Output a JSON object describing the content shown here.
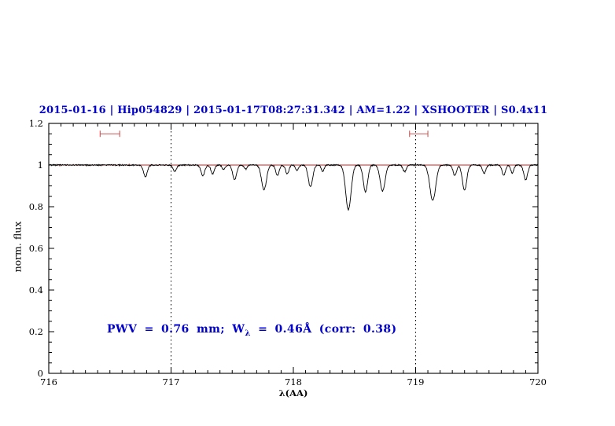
{
  "chart_data": {
    "type": "line",
    "title": "2015-01-16 | Hip054829 | 2015-01-17T08:27:31.342 | AM=1.22 | XSHOOTER | S0.4x11",
    "xlabel": "λ(AA)",
    "ylabel": "norm. flux",
    "xlim": [
      716,
      720
    ],
    "ylim": [
      0,
      1.2
    ],
    "xticks": [
      {
        "v": 716,
        "label": "716"
      },
      {
        "v": 717,
        "label": "717"
      },
      {
        "v": 718,
        "label": "718"
      },
      {
        "v": 719,
        "label": "719"
      },
      {
        "v": 720,
        "label": "720"
      }
    ],
    "yticks": [
      {
        "v": 0,
        "label": "0"
      },
      {
        "v": 0.2,
        "label": "0.2"
      },
      {
        "v": 0.4,
        "label": "0.4"
      },
      {
        "v": 0.6,
        "label": "0.6"
      },
      {
        "v": 0.8,
        "label": "0.8"
      },
      {
        "v": 1,
        "label": "1"
      },
      {
        "v": 1.2,
        "label": "1.2"
      }
    ],
    "x_minor_step": 0.1,
    "y_minor_step": 0.05,
    "grid": "off",
    "legend": "none",
    "vlines": [
      {
        "x": 717,
        "style": "dotted"
      },
      {
        "x": 719,
        "style": "dotted"
      }
    ],
    "continuum_level": 1.0,
    "series": [
      {
        "name": "observed spectrum",
        "color": "#000000"
      },
      {
        "name": "continuum fit",
        "color": "#cc2020"
      }
    ],
    "absorption_lines": [
      {
        "center": 716.79,
        "depth": 0.055,
        "sigma": 0.016
      },
      {
        "center": 717.03,
        "depth": 0.03,
        "sigma": 0.014
      },
      {
        "center": 717.26,
        "depth": 0.05,
        "sigma": 0.016
      },
      {
        "center": 717.34,
        "depth": 0.042,
        "sigma": 0.014
      },
      {
        "center": 717.43,
        "depth": 0.022,
        "sigma": 0.012
      },
      {
        "center": 717.52,
        "depth": 0.07,
        "sigma": 0.016
      },
      {
        "center": 717.61,
        "depth": 0.02,
        "sigma": 0.012
      },
      {
        "center": 717.76,
        "depth": 0.12,
        "sigma": 0.02
      },
      {
        "center": 717.87,
        "depth": 0.05,
        "sigma": 0.014
      },
      {
        "center": 717.95,
        "depth": 0.042,
        "sigma": 0.014
      },
      {
        "center": 718.03,
        "depth": 0.025,
        "sigma": 0.012
      },
      {
        "center": 718.14,
        "depth": 0.105,
        "sigma": 0.018
      },
      {
        "center": 718.24,
        "depth": 0.03,
        "sigma": 0.012
      },
      {
        "center": 718.45,
        "depth": 0.215,
        "sigma": 0.022
      },
      {
        "center": 718.59,
        "depth": 0.13,
        "sigma": 0.018
      },
      {
        "center": 718.73,
        "depth": 0.125,
        "sigma": 0.02
      },
      {
        "center": 718.91,
        "depth": 0.032,
        "sigma": 0.014
      },
      {
        "center": 719.14,
        "depth": 0.17,
        "sigma": 0.024
      },
      {
        "center": 719.32,
        "depth": 0.05,
        "sigma": 0.014
      },
      {
        "center": 719.4,
        "depth": 0.12,
        "sigma": 0.018
      },
      {
        "center": 719.56,
        "depth": 0.04,
        "sigma": 0.014
      },
      {
        "center": 719.72,
        "depth": 0.05,
        "sigma": 0.014
      },
      {
        "center": 719.79,
        "depth": 0.04,
        "sigma": 0.012
      },
      {
        "center": 719.9,
        "depth": 0.07,
        "sigma": 0.016
      }
    ],
    "range_markers": [
      {
        "x1": 716.42,
        "x2": 716.58,
        "y": 1.15
      },
      {
        "x1": 718.95,
        "x2": 719.1,
        "y": 1.15
      }
    ],
    "annotation": {
      "text_before_sub": "PWV = 0.76 mm; W",
      "sub": "λ",
      "text_after_sub": " = 0.46Å (corr: 0.38)",
      "x": 716.48,
      "y": 0.19,
      "color": "#0000cd"
    },
    "colors": {
      "title": "#0000cd",
      "annotation": "#0000cd",
      "spectrum": "#000000",
      "continuum": "#cc2020",
      "marker": "#cc5555",
      "axis": "#000000"
    }
  }
}
